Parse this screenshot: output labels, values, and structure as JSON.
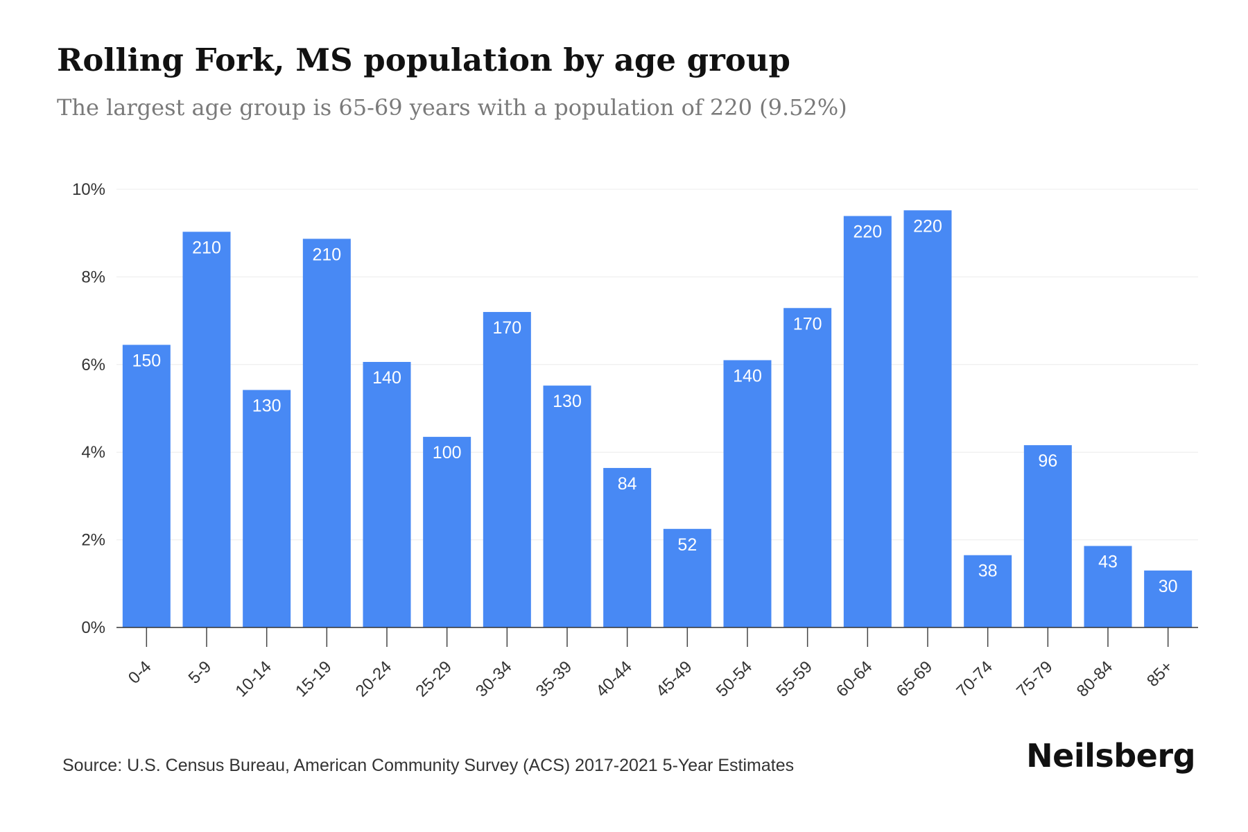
{
  "chart_data": {
    "type": "bar",
    "title": "Rolling Fork, MS population by age group",
    "subtitle": "The largest age group is 65-69 years with a population of 220 (9.52%)",
    "categories": [
      "0-4",
      "5-9",
      "10-14",
      "15-19",
      "20-24",
      "25-29",
      "30-34",
      "35-39",
      "40-44",
      "45-49",
      "50-54",
      "55-59",
      "60-64",
      "65-69",
      "70-74",
      "75-79",
      "80-84",
      "85+"
    ],
    "values": [
      6.45,
      9.03,
      5.42,
      8.87,
      6.06,
      4.35,
      7.2,
      5.52,
      3.64,
      2.25,
      6.1,
      7.29,
      9.39,
      9.52,
      1.65,
      4.16,
      1.86,
      1.3
    ],
    "data_labels": [
      "150",
      "210",
      "130",
      "210",
      "140",
      "100",
      "170",
      "130",
      "84",
      "52",
      "140",
      "170",
      "220",
      "220",
      "38",
      "96",
      "43",
      "30"
    ],
    "y_ticks": [
      0,
      2,
      4,
      6,
      8,
      10
    ],
    "y_tick_labels": [
      "0%",
      "2%",
      "4%",
      "6%",
      "8%",
      "10%"
    ],
    "ylim": [
      0,
      10
    ],
    "xlabel": "",
    "ylabel": "",
    "grid": true,
    "bar_color": "#4889f4",
    "label_color": "#ffffff"
  },
  "source": "Source: U.S. Census Bureau, American Community Survey (ACS) 2017-2021 5-Year Estimates",
  "brand": "Neilsberg"
}
